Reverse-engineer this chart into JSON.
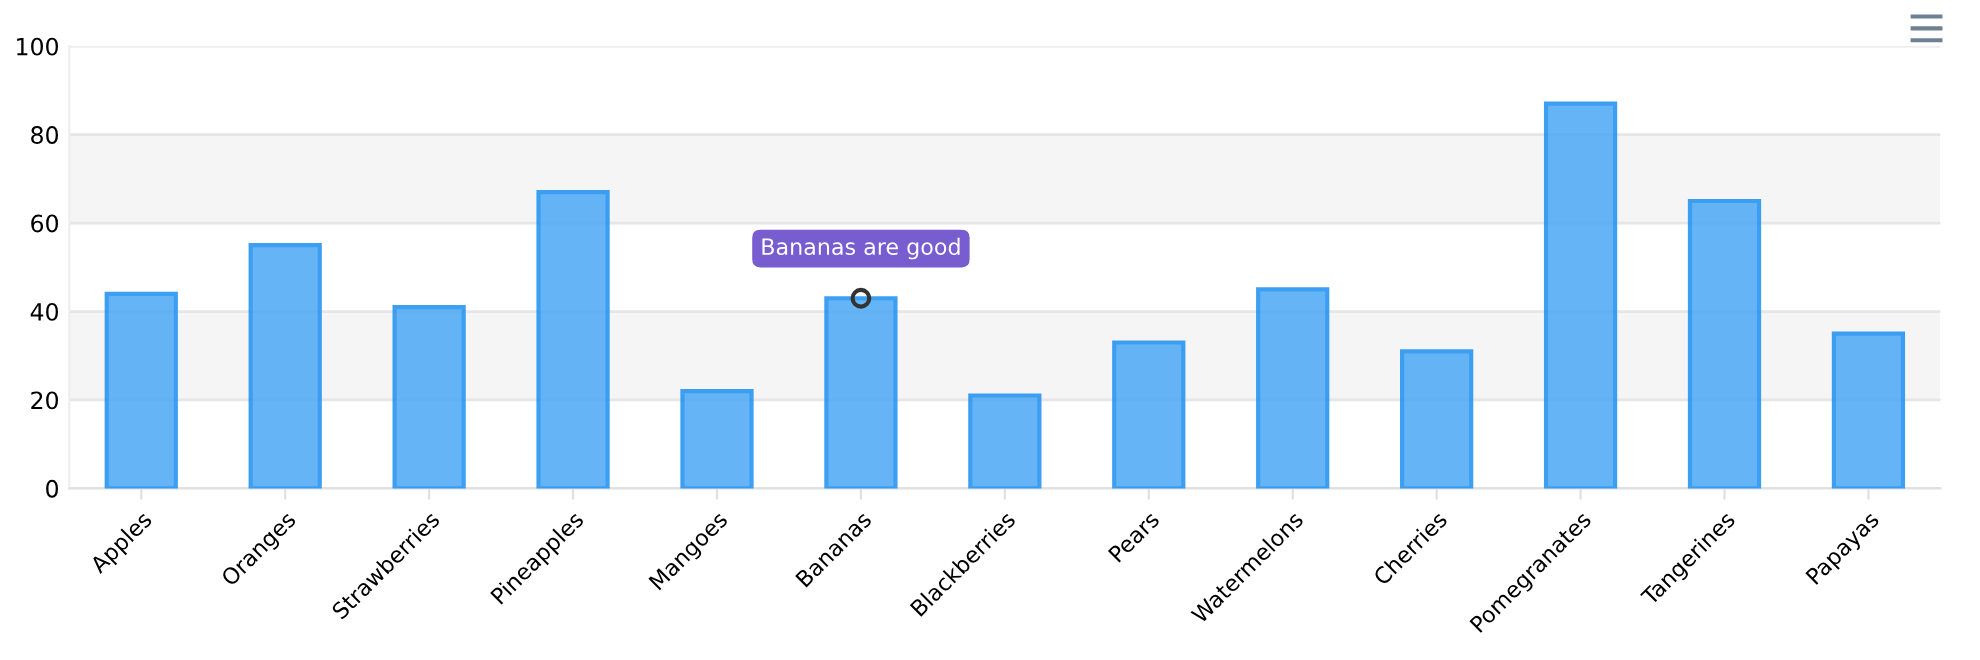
{
  "chart_data": {
    "type": "bar",
    "categories": [
      "Apples",
      "Oranges",
      "Strawberries",
      "Pineapples",
      "Mangoes",
      "Bananas",
      "Blackberries",
      "Pears",
      "Watermelons",
      "Cherries",
      "Pomegranates",
      "Tangerines",
      "Papayas"
    ],
    "values": [
      44,
      55,
      41,
      67,
      22,
      43,
      21,
      33,
      45,
      31,
      87,
      65,
      35
    ],
    "color": "#4aa8f5",
    "ylim": [
      0,
      100
    ],
    "yticks": [
      0,
      20,
      40,
      60,
      80,
      100
    ],
    "grid": "y",
    "bands": [
      {
        "axis": "y",
        "from": 60,
        "to": 80,
        "color": "#f5f5f5"
      },
      {
        "axis": "y",
        "from": 20,
        "to": 40,
        "color": "#f5f5f5"
      }
    ],
    "annotations": [
      {
        "text": "Bananas are good",
        "x": "Bananas",
        "y": 43
      }
    ]
  }
}
